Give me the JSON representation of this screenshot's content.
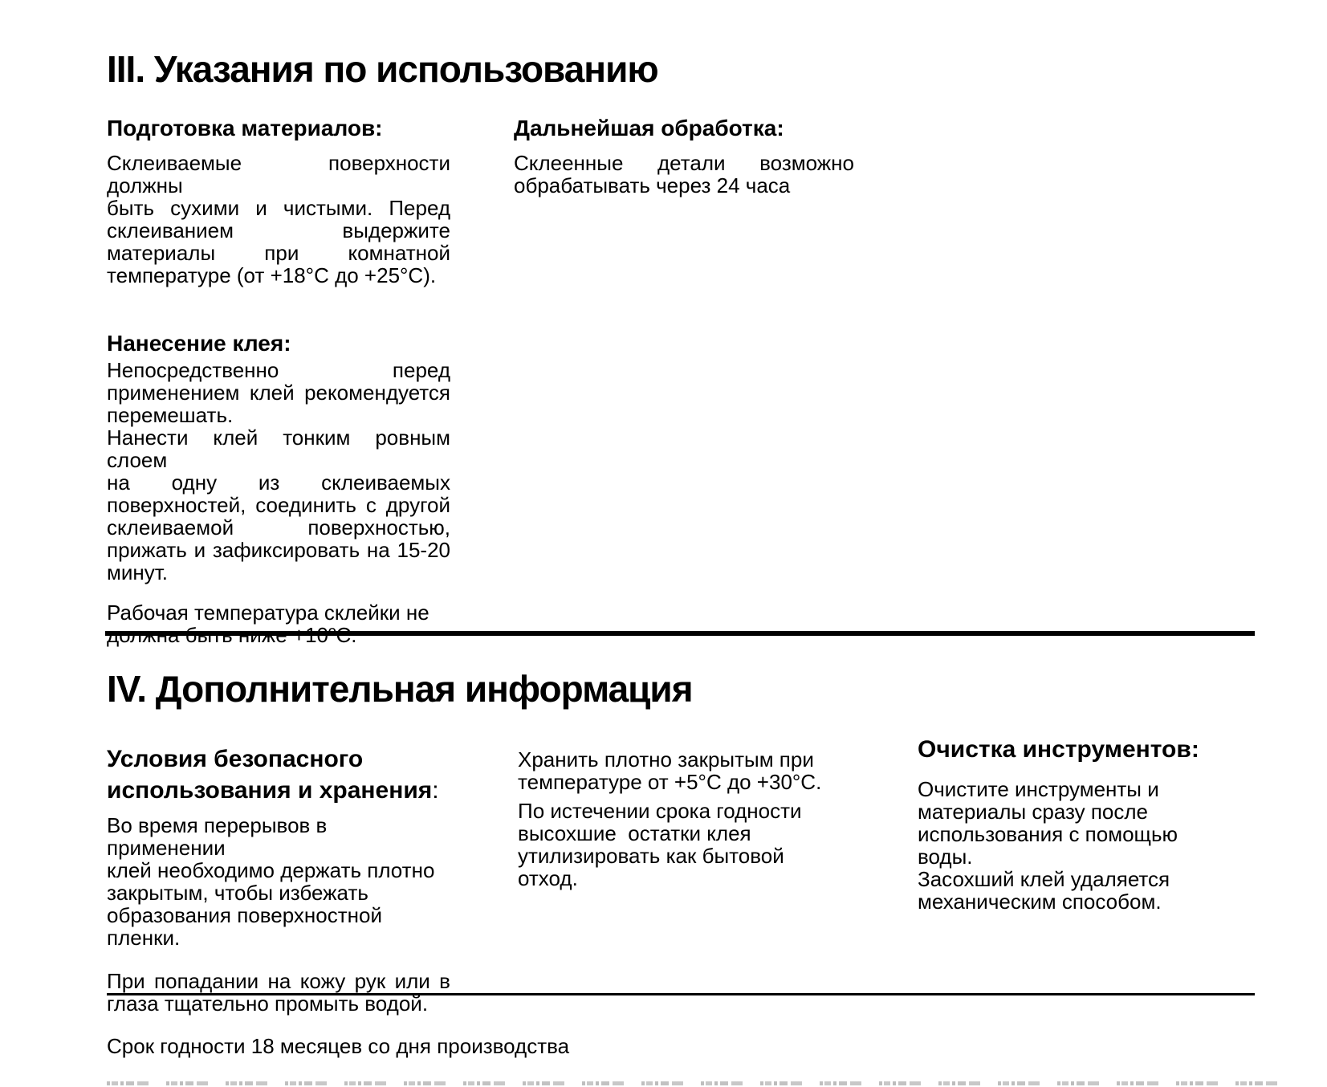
{
  "section3": {
    "title": "III. Указания по использованию",
    "col1": {
      "heading1": "Подготовка материалов:",
      "p1_lines": [
        "Склеиваемые поверхности должны",
        "быть сухими и чистыми. Перед",
        "склеиванием выдержите",
        "материалы при комнатной",
        "температуре (от +18°C до +25°C)."
      ],
      "heading2": "Нанесение клея:",
      "p2_lines": [
        "Непосредственно перед",
        "применением клей рекомендуется",
        "перемешать."
      ],
      "p3_lines": [
        "Нанести клей тонким ровным слоем",
        "на одну из склеиваемых",
        "поверхностей, соединить с другой",
        "склеиваемой поверхностью,",
        "прижать и зафиксировать на 15-20",
        "минут."
      ],
      "p4_lines": [
        "Рабочая температура склейки не",
        "должна быть ниже +10ºC."
      ]
    },
    "col2": {
      "heading": "Дальнейшая обработка:",
      "p1_lines": [
        "Склеенные детали возможно",
        "обрабатывать через 24 часа"
      ]
    }
  },
  "section4": {
    "title": "IV. Дополнительная информация",
    "col1": {
      "heading_line1": "Условия безопасного",
      "heading_line2": "использования и хранения",
      "heading_colon": ":",
      "p1_lines": [
        "Во время перерывов в применении",
        "клей необходимо держать плотно",
        "закрытым, чтобы избежать",
        "образования поверхностной",
        "пленки."
      ],
      "p2_lines": [
        "При попадании на кожу рук или в",
        "глаза тщательно промыть водой."
      ]
    },
    "col2": {
      "p1_lines": [
        "Хранить плотно закрытым при",
        "температуре от +5°C до +30°C."
      ],
      "p2_lines": [
        "По истечении срока годности",
        "высохшие  остатки клея",
        "утилизировать как бытовой отход."
      ]
    },
    "col3": {
      "heading": "Очистка инструментов:",
      "p1_lines": [
        "Очистите инструменты и",
        "материалы сразу после",
        "использования с помощью воды.",
        "Засохший клей удаляется",
        "механическим способом."
      ]
    }
  },
  "footer": {
    "shelf_life": "Срок годности 18 месяцев со дня производства"
  }
}
